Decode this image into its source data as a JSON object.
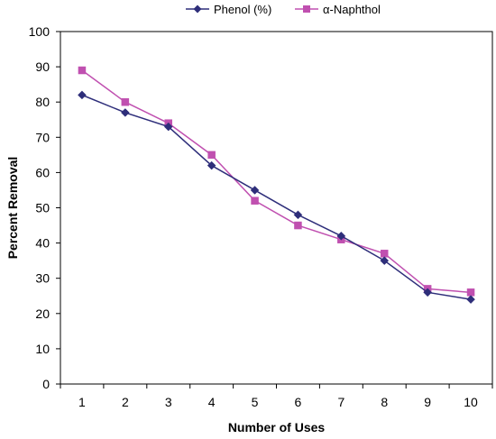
{
  "chart_data": {
    "type": "line",
    "title": "",
    "xlabel": "Number of Uses",
    "ylabel": "Percent Removal",
    "categories": [
      "1",
      "2",
      "3",
      "4",
      "5",
      "6",
      "7",
      "8",
      "9",
      "10"
    ],
    "ylim": [
      0,
      100
    ],
    "yticks": [
      "0",
      "10",
      "20",
      "30",
      "40",
      "50",
      "60",
      "70",
      "80",
      "90",
      "100"
    ],
    "grid": false,
    "legend_position": "top",
    "series": [
      {
        "name": "Phenol (%)",
        "marker": "diamond",
        "color": "#2E2E7A",
        "values": [
          82,
          77,
          73,
          62,
          55,
          48,
          42,
          35,
          26,
          24
        ]
      },
      {
        "name": "α-Naphthol",
        "marker": "square",
        "color": "#C050B0",
        "values": [
          89,
          80,
          74,
          65,
          52,
          45,
          41,
          37,
          27,
          26
        ]
      }
    ]
  }
}
